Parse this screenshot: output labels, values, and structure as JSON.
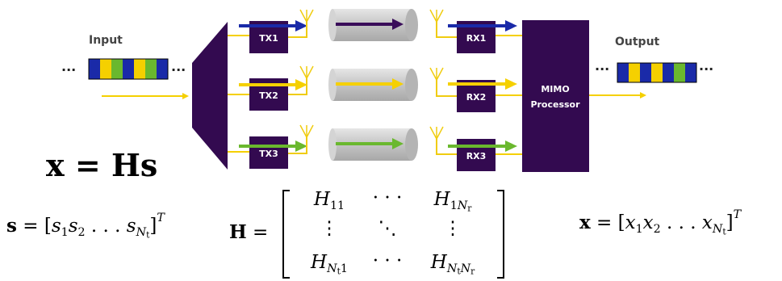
{
  "labels": {
    "input": "Input",
    "output": "Output",
    "tx": [
      "TX1",
      "TX2",
      "TX3"
    ],
    "rx": [
      "RX1",
      "RX2",
      "RX3"
    ],
    "processor_line1": "MIMO",
    "processor_line2": "Processor",
    "ellipsis": "..."
  },
  "equations": {
    "main": "x = Hs",
    "s_vector": "s = [s1 s2 ... sNt]^T",
    "H_matrix": "H = [[H11, ..., H1Nr], [..., ..., ...], [HNt1, ..., HNtNr]]",
    "x_vector": "x = [x1 x2 ... xNt]^T"
  },
  "colors": {
    "box": "#330a50",
    "channel1_arrow": "#1a2aa8",
    "channel2_arrow": "#f5d000",
    "channel3_arrow": "#6ab82e",
    "channel_tube": "#c8c8c8",
    "tube_arrow_1": "#3a0d5a",
    "antenna": "#f0cc10",
    "signal_line": "#f5d000",
    "stream_blue": "#1a2aa8",
    "stream_yellow": "#f5d000",
    "stream_green": "#6ab82e"
  },
  "input_stream": [
    "blue",
    "yellow",
    "green",
    "blue",
    "yellow",
    "green",
    "blue"
  ],
  "output_stream": [
    "blue",
    "yellow",
    "blue",
    "yellow",
    "blue",
    "green",
    "blue"
  ]
}
